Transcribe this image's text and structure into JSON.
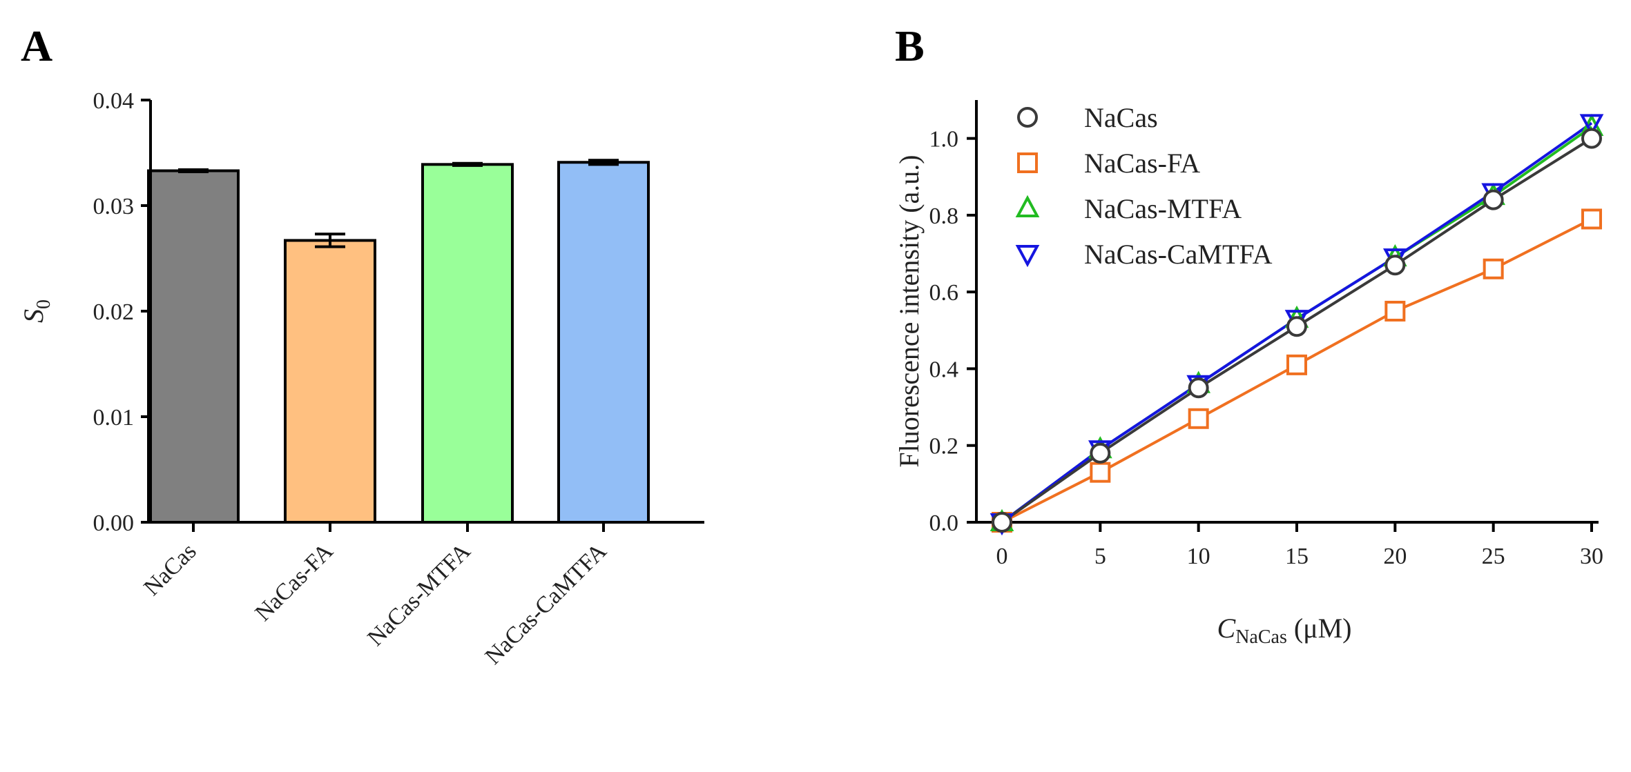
{
  "panels": {
    "a": {
      "letter": "A"
    },
    "b": {
      "letter": "B"
    }
  },
  "chart_data": [
    {
      "type": "bar",
      "panel": "A",
      "categories": [
        "NaCas",
        "NaCas-FA",
        "NaCas-MTFA",
        "NaCas-CaMTFA"
      ],
      "values": [
        0.0333,
        0.0267,
        0.0339,
        0.0341
      ],
      "errors": [
        0.0001,
        0.0006,
        0.0001,
        0.0002
      ],
      "colors": [
        "#808080",
        "#FFC080",
        "#99FF99",
        "#92BEF6"
      ],
      "ylabel_main": "S",
      "ylabel_sub": "0",
      "ylim": [
        0,
        0.04
      ],
      "yticks": [
        0.0,
        0.01,
        0.02,
        0.03,
        0.04
      ],
      "ytick_labels": [
        "0.00",
        "0.01",
        "0.02",
        "0.03",
        "0.04"
      ]
    },
    {
      "type": "line",
      "panel": "B",
      "x": [
        0,
        5,
        10,
        15,
        20,
        25,
        30
      ],
      "series": [
        {
          "name": "NaCas",
          "marker": "circle",
          "color": "#3a3a3a",
          "values": [
            0.0,
            0.18,
            0.35,
            0.51,
            0.67,
            0.84,
            1.0
          ]
        },
        {
          "name": "NaCas-FA",
          "marker": "square",
          "color": "#F07020",
          "values": [
            0.0,
            0.13,
            0.27,
            0.41,
            0.55,
            0.66,
            0.79
          ]
        },
        {
          "name": "NaCas-MTFA",
          "marker": "triangle-up",
          "color": "#22BB22",
          "values": [
            0.0,
            0.19,
            0.36,
            0.53,
            0.69,
            0.85,
            1.03
          ]
        },
        {
          "name": "NaCas-CaMTFA",
          "marker": "triangle-down",
          "color": "#1515E0",
          "values": [
            0.0,
            0.19,
            0.36,
            0.53,
            0.69,
            0.86,
            1.04
          ]
        }
      ],
      "ylabel": "Fluorescence intensity (a.u.)",
      "xlabel_main": "C",
      "xlabel_sub": "NaCas",
      "xlabel_unit": " (μM)",
      "xlim": [
        0,
        30
      ],
      "ylim": [
        0,
        1.1
      ],
      "xticks": [
        0,
        5,
        10,
        15,
        20,
        25,
        30
      ],
      "xtick_labels": [
        "0",
        "5",
        "10",
        "15",
        "20",
        "25",
        "30"
      ],
      "yticks": [
        0.0,
        0.2,
        0.4,
        0.6,
        0.8,
        1.0
      ],
      "ytick_labels": [
        "0.0",
        "0.2",
        "0.4",
        "0.6",
        "0.8",
        "1.0"
      ],
      "legend_position": "top-left"
    }
  ]
}
